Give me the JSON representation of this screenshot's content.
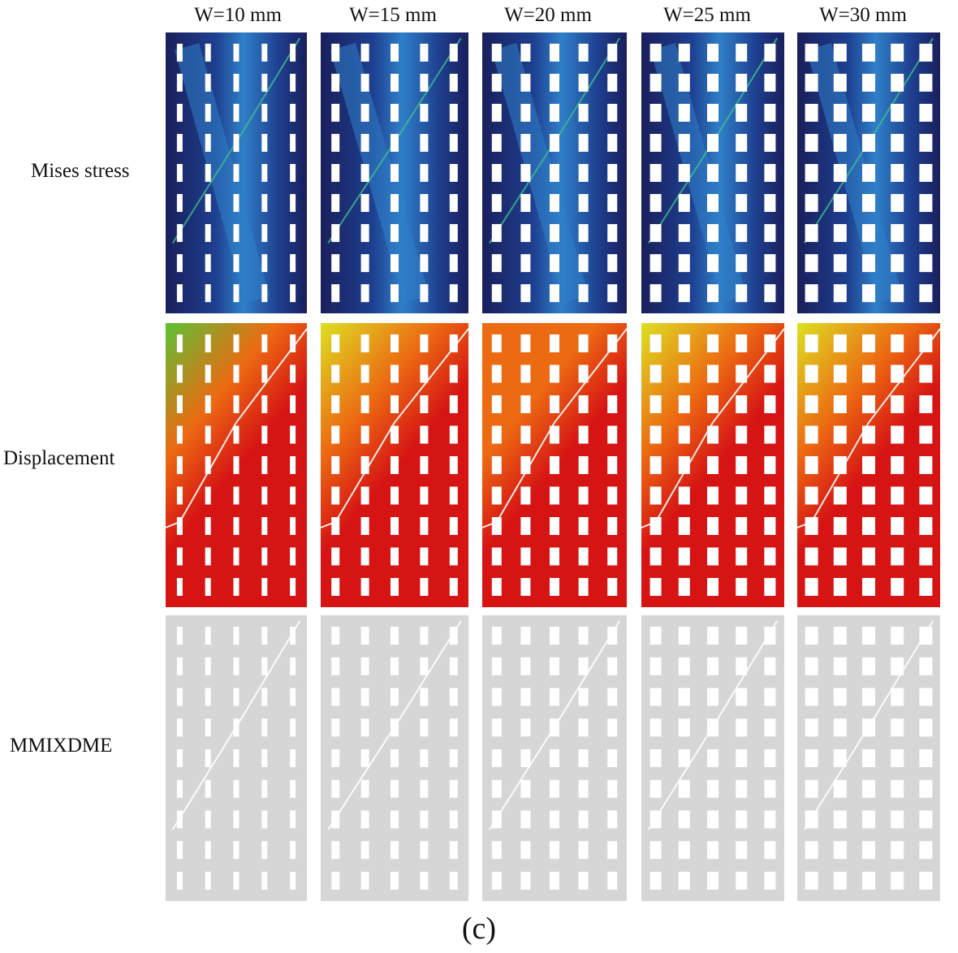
{
  "figure": {
    "columns": [
      "W=10 mm",
      "W=15 mm",
      "W=20 mm",
      "W=25 mm",
      "W=30 mm"
    ],
    "rows": [
      "Mises stress",
      "Displacement",
      "MMIXDME"
    ],
    "caption": "(c)"
  },
  "colors": {
    "stress_base": "#1e3f8f",
    "stress_dark": "#1a1f5c",
    "stress_band": "#2f7fc8",
    "stress_hot": "#3fbf8f",
    "disp_red": "#d61414",
    "disp_orange": "#ec6a12",
    "disp_yellow": "#dde022",
    "disp_green": "#5cc236",
    "mmixdme_gray": "#d6d6d6",
    "hole": "#ffffff"
  }
}
